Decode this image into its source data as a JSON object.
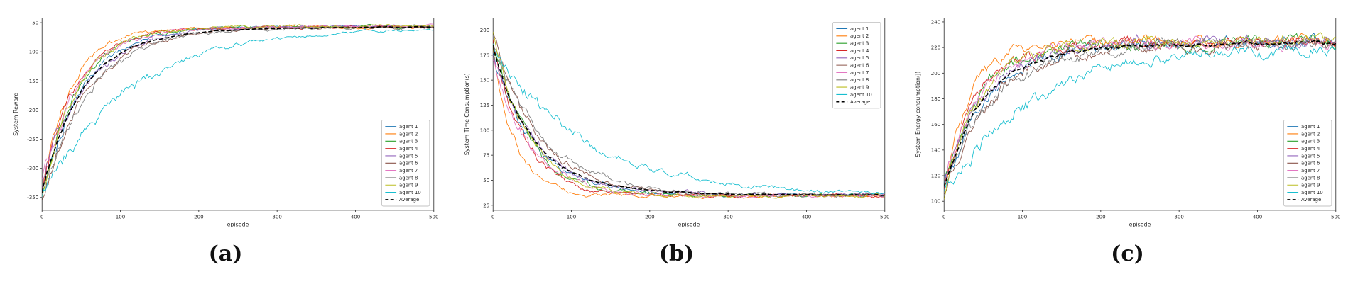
{
  "captions": {
    "a": "(a)",
    "b": "(b)",
    "c": "(c)"
  },
  "average_color": "#000000",
  "chart_data": [
    {
      "id": "a",
      "type": "line",
      "title": "",
      "xlabel": "episode",
      "ylabel": "System Reward",
      "xlim": [
        0,
        500
      ],
      "ylim": [
        -372,
        -42
      ],
      "xticks": [
        0,
        100,
        200,
        300,
        400,
        500
      ],
      "yticks": [
        -350,
        -300,
        -250,
        -200,
        -150,
        -100,
        -50
      ],
      "grid": false,
      "legend": {
        "position": "lower-right"
      },
      "converged_value_approx": -57,
      "noise": {
        "start": 16,
        "end": 2.5
      },
      "series": [
        {
          "name": "agent 1",
          "color": "#1f77b4",
          "start": -335,
          "end": -56,
          "tau": 52,
          "seed": 101
        },
        {
          "name": "agent 2",
          "color": "#ff7f0e",
          "start": -352,
          "end": -58,
          "tau": 36,
          "seed": 102
        },
        {
          "name": "agent 3",
          "color": "#2ca02c",
          "start": -340,
          "end": -57,
          "tau": 46,
          "seed": 103
        },
        {
          "name": "agent 4",
          "color": "#d62728",
          "start": -348,
          "end": -57.5,
          "tau": 42,
          "seed": 104
        },
        {
          "name": "agent 5",
          "color": "#9467bd",
          "start": -332,
          "end": -56.5,
          "tau": 55,
          "seed": 105
        },
        {
          "name": "agent 6",
          "color": "#8c564b",
          "start": -350,
          "end": -58,
          "tau": 58,
          "seed": 106
        },
        {
          "name": "agent 7",
          "color": "#e377c2",
          "start": -326,
          "end": -57,
          "tau": 47,
          "seed": 107
        },
        {
          "name": "agent 8",
          "color": "#7f7f7f",
          "start": -342,
          "end": -57.5,
          "tau": 62,
          "seed": 108
        },
        {
          "name": "agent 9",
          "color": "#bcbd22",
          "start": -358,
          "end": -56,
          "tau": 44,
          "seed": 109
        },
        {
          "name": "agent 10",
          "color": "#17becf",
          "start": -344,
          "end": -58,
          "tau": 112,
          "seed": 110
        }
      ],
      "average": {
        "name": "Average",
        "color": "#000000",
        "dashed": true
      }
    },
    {
      "id": "b",
      "type": "line",
      "title": "",
      "xlabel": "episode",
      "ylabel": "System Time Consumption(s)",
      "xlim": [
        0,
        500
      ],
      "ylim": [
        20,
        212
      ],
      "xticks": [
        0,
        100,
        200,
        300,
        400,
        500
      ],
      "yticks": [
        25,
        50,
        75,
        100,
        125,
        150,
        175,
        200
      ],
      "grid": false,
      "legend": {
        "position": "upper-right"
      },
      "converged_value_approx": 35,
      "noise": {
        "start": 9,
        "end": 1.8
      },
      "series": [
        {
          "name": "agent 1",
          "color": "#1f77b4",
          "start": 178,
          "end": 35,
          "tau": 52,
          "seed": 201
        },
        {
          "name": "agent 2",
          "color": "#ff7f0e",
          "start": 186,
          "end": 34,
          "tau": 28,
          "seed": 202
        },
        {
          "name": "agent 3",
          "color": "#2ca02c",
          "start": 182,
          "end": 35,
          "tau": 46,
          "seed": 203
        },
        {
          "name": "agent 4",
          "color": "#d62728",
          "start": 190,
          "end": 34.5,
          "tau": 40,
          "seed": 204
        },
        {
          "name": "agent 5",
          "color": "#9467bd",
          "start": 176,
          "end": 35.5,
          "tau": 55,
          "seed": 205
        },
        {
          "name": "agent 6",
          "color": "#8c564b",
          "start": 194,
          "end": 35,
          "tau": 58,
          "seed": 206
        },
        {
          "name": "agent 7",
          "color": "#e377c2",
          "start": 172,
          "end": 34.5,
          "tau": 47,
          "seed": 207
        },
        {
          "name": "agent 8",
          "color": "#7f7f7f",
          "start": 185,
          "end": 35,
          "tau": 65,
          "seed": 208
        },
        {
          "name": "agent 9",
          "color": "#bcbd22",
          "start": 200,
          "end": 34,
          "tau": 44,
          "seed": 209
        },
        {
          "name": "agent 10",
          "color": "#17becf",
          "start": 183,
          "end": 36,
          "tau": 115,
          "seed": 210
        }
      ],
      "average": {
        "name": "Average",
        "color": "#000000",
        "dashed": true
      }
    },
    {
      "id": "c",
      "type": "line",
      "title": "",
      "xlabel": "episode",
      "ylabel": "System Energy consumption(J)",
      "xlim": [
        0,
        500
      ],
      "ylim": [
        93,
        243
      ],
      "xticks": [
        0,
        100,
        200,
        300,
        400,
        500
      ],
      "yticks": [
        100,
        120,
        140,
        160,
        180,
        200,
        220,
        240
      ],
      "grid": false,
      "legend": {
        "position": "lower-right"
      },
      "converged_value_approx": 224,
      "noise": {
        "start": 7,
        "end": 4.5
      },
      "series": [
        {
          "name": "agent 1",
          "color": "#1f77b4",
          "start": 112,
          "end": 224,
          "tau": 55,
          "seed": 301
        },
        {
          "name": "agent 2",
          "color": "#ff7f0e",
          "start": 108,
          "end": 225,
          "tau": 34,
          "seed": 302
        },
        {
          "name": "agent 3",
          "color": "#2ca02c",
          "start": 115,
          "end": 223,
          "tau": 48,
          "seed": 303
        },
        {
          "name": "agent 4",
          "color": "#d62728",
          "start": 110,
          "end": 224,
          "tau": 42,
          "seed": 304
        },
        {
          "name": "agent 5",
          "color": "#9467bd",
          "start": 118,
          "end": 225,
          "tau": 58,
          "seed": 305
        },
        {
          "name": "agent 6",
          "color": "#8c564b",
          "start": 106,
          "end": 222,
          "tau": 60,
          "seed": 306
        },
        {
          "name": "agent 7",
          "color": "#e377c2",
          "start": 114,
          "end": 224,
          "tau": 50,
          "seed": 307
        },
        {
          "name": "agent 8",
          "color": "#7f7f7f",
          "start": 112,
          "end": 223,
          "tau": 68,
          "seed": 308
        },
        {
          "name": "agent 9",
          "color": "#bcbd22",
          "start": 104,
          "end": 226,
          "tau": 46,
          "seed": 309
        },
        {
          "name": "agent 10",
          "color": "#17becf",
          "start": 107,
          "end": 221,
          "tau": 115,
          "seed": 310
        }
      ],
      "average": {
        "name": "Average",
        "color": "#000000",
        "dashed": true
      }
    }
  ]
}
